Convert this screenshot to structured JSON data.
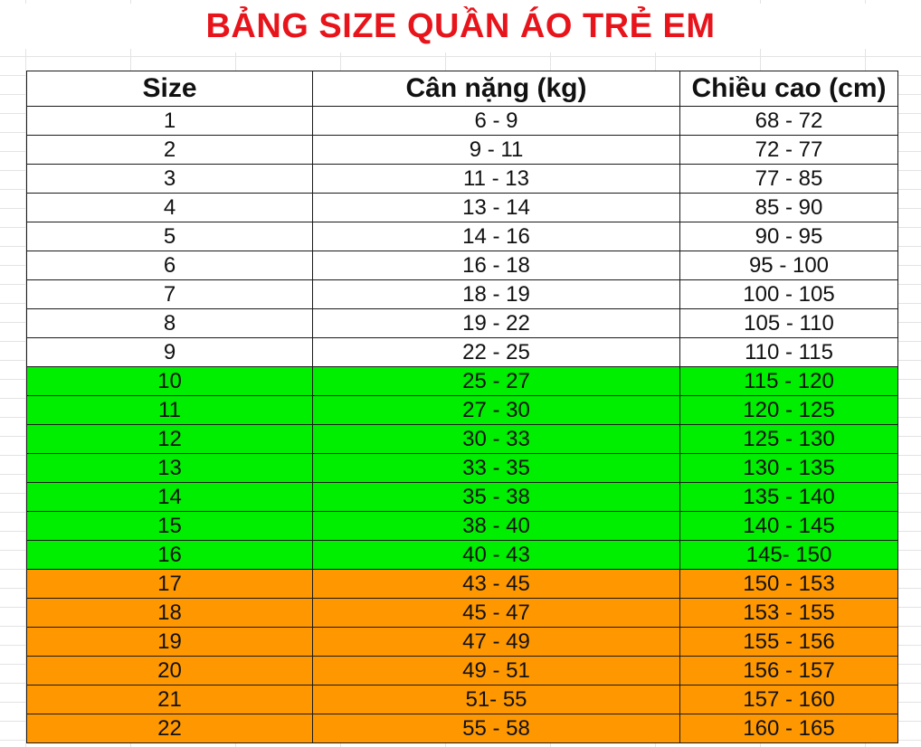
{
  "title": "BẢNG SIZE QUẦN ÁO TRẺ EM",
  "colors": {
    "title": "#e8141b",
    "white_row": "#ffffff",
    "green_row": "#00ee00",
    "orange_row": "#ff9800"
  },
  "table": {
    "headers": [
      "Size",
      "Cân nặng (kg)",
      "Chiều cao (cm)"
    ],
    "rows": [
      {
        "size": "1",
        "weight": "6 - 9",
        "height": "68 - 72",
        "band": "white"
      },
      {
        "size": "2",
        "weight": "9 - 11",
        "height": "72 - 77",
        "band": "white"
      },
      {
        "size": "3",
        "weight": "11 - 13",
        "height": "77 - 85",
        "band": "white"
      },
      {
        "size": "4",
        "weight": "13 - 14",
        "height": "85 - 90",
        "band": "white"
      },
      {
        "size": "5",
        "weight": "14 - 16",
        "height": "90 - 95",
        "band": "white"
      },
      {
        "size": "6",
        "weight": "16 - 18",
        "height": "95 - 100",
        "band": "white"
      },
      {
        "size": "7",
        "weight": "18 - 19",
        "height": "100 - 105",
        "band": "white"
      },
      {
        "size": "8",
        "weight": "19 - 22",
        "height": "105 - 110",
        "band": "white"
      },
      {
        "size": "9",
        "weight": "22 - 25",
        "height": "110 - 115",
        "band": "white"
      },
      {
        "size": "10",
        "weight": "25 - 27",
        "height": "115 - 120",
        "band": "green"
      },
      {
        "size": "11",
        "weight": "27 - 30",
        "height": "120 - 125",
        "band": "green"
      },
      {
        "size": "12",
        "weight": "30 - 33",
        "height": "125 - 130",
        "band": "green"
      },
      {
        "size": "13",
        "weight": "33 - 35",
        "height": "130 - 135",
        "band": "green"
      },
      {
        "size": "14",
        "weight": "35 - 38",
        "height": "135 - 140",
        "band": "green"
      },
      {
        "size": "15",
        "weight": "38 - 40",
        "height": "140 - 145",
        "band": "green"
      },
      {
        "size": "16",
        "weight": "40 - 43",
        "height": "145- 150",
        "band": "green"
      },
      {
        "size": "17",
        "weight": "43 - 45",
        "height": "150 - 153",
        "band": "orange"
      },
      {
        "size": "18",
        "weight": "45 - 47",
        "height": "153 - 155",
        "band": "orange"
      },
      {
        "size": "19",
        "weight": "47 - 49",
        "height": "155 - 156",
        "band": "orange"
      },
      {
        "size": "20",
        "weight": "49 - 51",
        "height": "156 - 157",
        "band": "orange"
      },
      {
        "size": "21",
        "weight": "51- 55",
        "height": "157 - 160",
        "band": "orange"
      },
      {
        "size": "22",
        "weight": "55 - 58",
        "height": "160 - 165",
        "band": "orange"
      }
    ]
  }
}
